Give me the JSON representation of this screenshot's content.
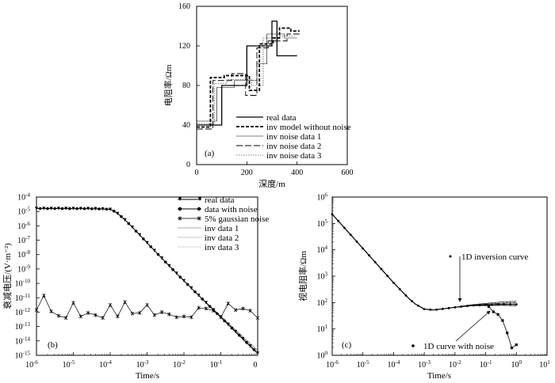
{
  "chart_data": [
    {
      "id": "a",
      "type": "line",
      "panel_label": "(a)",
      "xlabel": "深度/m",
      "ylabel": "电阻率/Ωm",
      "xlim": [
        0,
        600
      ],
      "ylim": [
        0,
        160
      ],
      "xticks": [
        "0",
        "200",
        "400",
        "600"
      ],
      "yticks": [
        "0",
        "40",
        "80",
        "120",
        "160"
      ],
      "legend": [
        "real data",
        "inv model without noise",
        "inv noise data 1",
        "inv noise data 2",
        "inv noise data 3"
      ],
      "series": [
        {
          "name": "real data",
          "style": "solid-thick",
          "x": [
            0,
            100,
            100,
            200,
            200,
            300,
            300,
            320,
            320,
            400
          ],
          "y": [
            40,
            40,
            80,
            80,
            120,
            120,
            145,
            145,
            110,
            110
          ]
        },
        {
          "name": "inv model without noise",
          "style": "dash-thick",
          "x": [
            0,
            55,
            55,
            110,
            110,
            210,
            210,
            250,
            250,
            305,
            305,
            330,
            330,
            375,
            375,
            410
          ],
          "y": [
            38,
            38,
            88,
            88,
            90,
            90,
            75,
            75,
            122,
            122,
            128,
            128,
            138,
            138,
            135,
            135
          ]
        },
        {
          "name": "inv noise data 1",
          "style": "solid-thin",
          "x": [
            0,
            80,
            80,
            150,
            150,
            240,
            240,
            280,
            280,
            350,
            350,
            400
          ],
          "y": [
            44,
            44,
            78,
            78,
            85,
            85,
            102,
            102,
            132,
            132,
            128,
            128
          ]
        },
        {
          "name": "inv noise data 2",
          "style": "dash-long",
          "x": [
            0,
            65,
            65,
            140,
            140,
            195,
            195,
            240,
            240,
            285,
            285,
            360,
            360,
            410
          ],
          "y": [
            36,
            36,
            85,
            85,
            92,
            92,
            70,
            70,
            118,
            118,
            125,
            125,
            132,
            132
          ]
        },
        {
          "name": "inv noise data 3",
          "style": "dot-thin",
          "x": [
            0,
            70,
            70,
            120,
            120,
            220,
            220,
            265,
            265,
            330,
            330,
            390
          ],
          "y": [
            41,
            41,
            82,
            82,
            86,
            86,
            80,
            80,
            128,
            128,
            130,
            130
          ]
        }
      ]
    },
    {
      "id": "b",
      "type": "line",
      "panel_label": "(b)",
      "xlabel": "Time/s",
      "ylabel": "衰减电压/(V·m⁻²)",
      "xscale": "log",
      "yscale": "log",
      "xlim_exp": [
        -6,
        0
      ],
      "ylim_exp": [
        -15,
        -4
      ],
      "xtick_exps": [
        "-6",
        "-5",
        "-4",
        "-3",
        "-2",
        "-1"
      ],
      "xtick_last": "0",
      "ytick_exps": [
        "-4",
        "-5",
        "-6",
        "-7",
        "-8",
        "-9",
        "-10",
        "-11",
        "-12",
        "-13",
        "-14",
        "-15"
      ],
      "tick_base": "10",
      "legend": [
        "real data",
        "data with noise",
        "5% gaussian noise",
        "inv data 1",
        "inv data 2",
        "inv data 3"
      ],
      "decay_model": {
        "plateau_exp": -4.8,
        "knee_exp": -4.0,
        "slope": -2.5
      },
      "noise_series": {
        "name": "5% gaussian noise",
        "log_t": [
          -6,
          -5.8,
          -5.6,
          -5.4,
          -5.2,
          -5,
          -4.8,
          -4.6,
          -4.4,
          -4.2,
          -4,
          -3.8,
          -3.6,
          -3.4,
          -3.2,
          -3,
          -2.8,
          -2.6,
          -2.4,
          -2.2,
          -2,
          -1.8,
          -1.6,
          -1.4,
          -1.2,
          -1,
          -0.8,
          -0.6,
          -0.4,
          -0.2,
          0
        ],
        "log_v": [
          -11.85,
          -10.85,
          -11.95,
          -12.25,
          -12.4,
          -11.35,
          -12.3,
          -12.05,
          -12.2,
          -12.4,
          -11.5,
          -12.3,
          -11.3,
          -12.1,
          -12.05,
          -11.5,
          -12.2,
          -12.0,
          -12.15,
          -12.35,
          -12.3,
          -12.35,
          -11.7,
          -11.75,
          -11.9,
          -12.35,
          -11.4,
          -11.85,
          -11.75,
          -11.9,
          -12.4
        ]
      }
    },
    {
      "id": "c",
      "type": "line",
      "panel_label": "(c)",
      "xlabel": "Time/s",
      "ylabel": "视电阻率/Ωm",
      "xscale": "log",
      "yscale": "log",
      "xlim_exp": [
        -6,
        1
      ],
      "ylim_exp": [
        0,
        6
      ],
      "xtick_exps": [
        "-6",
        "-5",
        "-4",
        "-3",
        "-2",
        "-1",
        "0",
        "1"
      ],
      "ytick_exps": [
        "0",
        "1",
        "2",
        "3",
        "4",
        "5",
        "6"
      ],
      "tick_base": "10",
      "annotations": [
        "1D inversion curve",
        "1D curve with noise"
      ],
      "rho_model": {
        "log_t": [
          -6,
          -5.5,
          -5,
          -4.5,
          -4,
          -3.5,
          -3.3,
          -3,
          -2.7,
          -2.4,
          -2,
          -1.7,
          -1.4,
          -1,
          -0.5,
          0
        ],
        "log_rho": [
          5.35,
          4.7,
          4.05,
          3.4,
          2.75,
          2.15,
          1.95,
          1.75,
          1.72,
          1.76,
          1.82,
          1.86,
          1.89,
          1.91,
          1.93,
          1.93
        ]
      },
      "noise_curve": {
        "name": "1D curve with noise",
        "log_t": [
          -0.9,
          -0.75,
          -0.6,
          -0.45,
          -0.3,
          -0.15,
          0
        ],
        "log_rho": [
          1.85,
          1.65,
          1.55,
          1.32,
          0.85,
          0.28,
          0.4
        ]
      }
    }
  ]
}
